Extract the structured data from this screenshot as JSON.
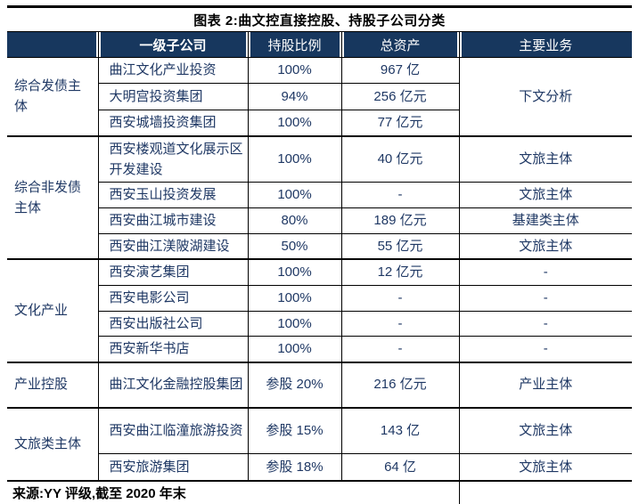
{
  "title": "图表 2:曲文控直接控股、持股子公司分类",
  "colors": {
    "header_bg": "#17375E",
    "header_text": "#FFFFFF",
    "body_text": "#1F3864",
    "rule": "#000000"
  },
  "table": {
    "headers": {
      "category": "",
      "subsidiary": "一级子公司",
      "ratio": "持股比例",
      "assets": "总资产",
      "business": "主要业务"
    },
    "groups": [
      {
        "category": "综合发债主体",
        "business_merged": "下文分析",
        "rows": [
          {
            "name": "曲江文化产业投资",
            "ratio": "100%",
            "assets": "967 亿"
          },
          {
            "name": "大明宫投资集团",
            "ratio": "94%",
            "assets": "256 亿元"
          },
          {
            "name": "西安城墙投资集团",
            "ratio": "100%",
            "assets": "77 亿元"
          }
        ]
      },
      {
        "category": "综合非发债主体",
        "rows": [
          {
            "name": "西安楼观道文化展示区开发建设",
            "ratio": "100%",
            "assets": "40 亿元",
            "business": "文旅主体"
          },
          {
            "name": "西安玉山投资发展",
            "ratio": "100%",
            "assets": "-",
            "business": "文旅主体"
          },
          {
            "name": "西安曲江城市建设",
            "ratio": "80%",
            "assets": "189 亿元",
            "business": "基建类主体"
          },
          {
            "name": "西安曲江渼陂湖建设",
            "ratio": "50%",
            "assets": "55 亿元",
            "business": "文旅主体"
          }
        ]
      },
      {
        "category": "文化产业",
        "rows": [
          {
            "name": "西安演艺集团",
            "ratio": "100%",
            "assets": "12 亿元",
            "business": "-"
          },
          {
            "name": "西安电影公司",
            "ratio": "100%",
            "assets": "-",
            "business": "-"
          },
          {
            "name": "西安出版社公司",
            "ratio": "100%",
            "assets": "-",
            "business": "-"
          },
          {
            "name": "西安新华书店",
            "ratio": "100%",
            "assets": "-",
            "business": "-"
          }
        ]
      },
      {
        "category": "产业控股",
        "rows": [
          {
            "name": "曲江文化金融控股集团",
            "ratio": "参股 20%",
            "assets": "216 亿元",
            "business": "产业主体"
          }
        ]
      },
      {
        "category": "文旅类主体",
        "rows": [
          {
            "name": "西安曲江临潼旅游投资",
            "ratio": "参股 15%",
            "assets": "143 亿",
            "business": "文旅主体"
          },
          {
            "name": "西安旅游集团",
            "ratio": "参股 18%",
            "assets": "64 亿",
            "business": "文旅主体"
          }
        ]
      }
    ],
    "source": "来源:YY 评级,截至 2020 年末"
  },
  "chart_data": {
    "type": "table",
    "title": "图表 2:曲文控直接控股、持股子公司分类",
    "columns": [
      "",
      "一级子公司",
      "持股比例",
      "总资产",
      "主要业务"
    ],
    "rows": [
      [
        "综合发债主体",
        "曲江文化产业投资",
        "100%",
        "967 亿",
        "下文分析"
      ],
      [
        "综合发债主体",
        "大明宫投资集团",
        "94%",
        "256 亿元",
        "下文分析"
      ],
      [
        "综合发债主体",
        "西安城墙投资集团",
        "100%",
        "77 亿元",
        "下文分析"
      ],
      [
        "综合非发债主体",
        "西安楼观道文化展示区开发建设",
        "100%",
        "40 亿元",
        "文旅主体"
      ],
      [
        "综合非发债主体",
        "西安玉山投资发展",
        "100%",
        "-",
        "文旅主体"
      ],
      [
        "综合非发债主体",
        "西安曲江城市建设",
        "80%",
        "189 亿元",
        "基建类主体"
      ],
      [
        "综合非发债主体",
        "西安曲江渼陂湖建设",
        "50%",
        "55 亿元",
        "文旅主体"
      ],
      [
        "文化产业",
        "西安演艺集团",
        "100%",
        "12 亿元",
        "-"
      ],
      [
        "文化产业",
        "西安电影公司",
        "100%",
        "-",
        "-"
      ],
      [
        "文化产业",
        "西安出版社公司",
        "100%",
        "-",
        "-"
      ],
      [
        "文化产业",
        "西安新华书店",
        "100%",
        "-",
        "-"
      ],
      [
        "产业控股",
        "曲江文化金融控股集团",
        "参股 20%",
        "216 亿元",
        "产业主体"
      ],
      [
        "文旅类主体",
        "西安曲江临潼旅游投资",
        "参股 15%",
        "143 亿",
        "文旅主体"
      ],
      [
        "文旅类主体",
        "西安旅游集团",
        "参股 18%",
        "64 亿",
        "文旅主体"
      ]
    ],
    "source": "来源:YY 评级,截至 2020 年末"
  }
}
